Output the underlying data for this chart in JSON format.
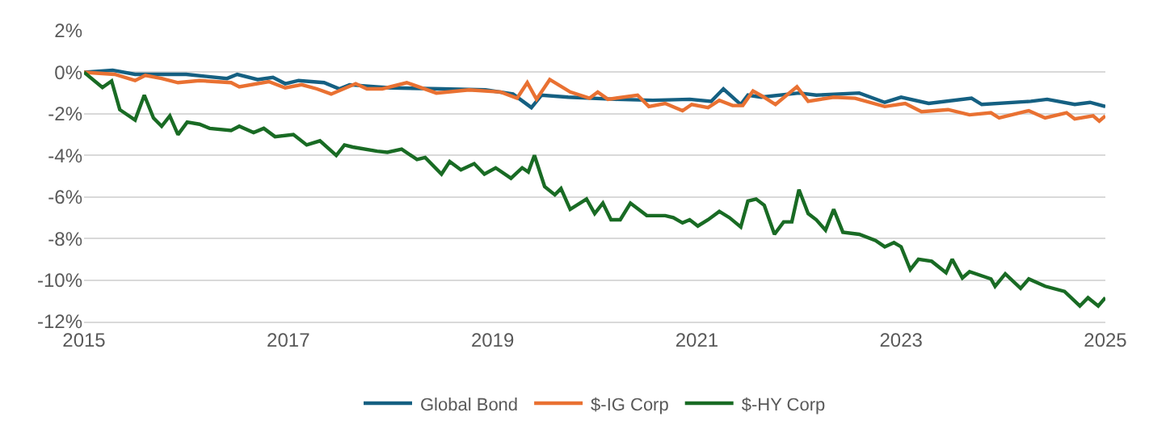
{
  "chart_data": {
    "type": "line",
    "xlim": [
      2015,
      2025
    ],
    "xticks": [
      2015,
      2017,
      2019,
      2021,
      2023,
      2025
    ],
    "ylim": [
      -12,
      2
    ],
    "yticks": [
      {
        "value": 2,
        "label": "2%"
      },
      {
        "value": 0,
        "label": "0%"
      },
      {
        "value": -2,
        "label": "-2%"
      },
      {
        "value": -4,
        "label": "-4%"
      },
      {
        "value": -6,
        "label": "-6%"
      },
      {
        "value": -8,
        "label": "-8%"
      },
      {
        "value": -10,
        "label": "-10%"
      },
      {
        "value": -12,
        "label": "-12%"
      }
    ],
    "grid": "y",
    "legend": "bottom",
    "marker": "none",
    "line_style": "solid",
    "series": [
      {
        "name": "Global Bond",
        "color": "#156082",
        "x": [
          2015,
          2015.28,
          2015.5,
          2016.0,
          2016.2,
          2016.4,
          2016.5,
          2016.7,
          2016.85,
          2016.97,
          2017.1,
          2017.35,
          2017.5,
          2017.6,
          2017.86,
          2018.0,
          2018.5,
          2018.93,
          2019.2,
          2019.38,
          2019.48,
          2019.74,
          2020.2,
          2020.57,
          2020.93,
          2021.14,
          2021.26,
          2021.43,
          2021.5,
          2021.63,
          2022.0,
          2022.17,
          2022.59,
          2022.84,
          2023.0,
          2023.27,
          2023.69,
          2023.79,
          2024.27,
          2024.43,
          2024.7,
          2024.85,
          2025
        ],
        "values": [
          0,
          0.1,
          -0.1,
          -0.1,
          -0.2,
          -0.3,
          -0.1,
          -0.35,
          -0.25,
          -0.55,
          -0.4,
          -0.5,
          -0.8,
          -0.6,
          -0.7,
          -0.75,
          -0.8,
          -0.85,
          -1.05,
          -1.7,
          -1.1,
          -1.2,
          -1.3,
          -1.35,
          -1.3,
          -1.4,
          -0.8,
          -1.55,
          -1.1,
          -1.2,
          -1.0,
          -1.1,
          -1.0,
          -1.45,
          -1.2,
          -1.5,
          -1.25,
          -1.55,
          -1.4,
          -1.3,
          -1.55,
          -1.45,
          -1.65
        ]
      },
      {
        "name": "$-IG Corp",
        "color": "#e97132",
        "x": [
          2015,
          2015.3,
          2015.5,
          2015.6,
          2015.76,
          2015.92,
          2016.13,
          2016.44,
          2016.52,
          2016.81,
          2016.97,
          2017.13,
          2017.28,
          2017.42,
          2017.66,
          2017.77,
          2017.92,
          2018.16,
          2018.45,
          2018.77,
          2019.08,
          2019.24,
          2019.34,
          2019.43,
          2019.56,
          2019.76,
          2019.95,
          2020.03,
          2020.13,
          2020.42,
          2020.53,
          2020.69,
          2020.86,
          2020.95,
          2021.11,
          2021.22,
          2021.35,
          2021.45,
          2021.55,
          2021.64,
          2021.77,
          2021.98,
          2022.09,
          2022.34,
          2022.55,
          2022.84,
          2023.04,
          2023.2,
          2023.46,
          2023.67,
          2023.88,
          2023.96,
          2024.25,
          2024.41,
          2024.62,
          2024.7,
          2024.88,
          2024.94,
          2025
        ],
        "values": [
          0,
          -0.1,
          -0.4,
          -0.15,
          -0.3,
          -0.5,
          -0.4,
          -0.5,
          -0.7,
          -0.45,
          -0.75,
          -0.6,
          -0.8,
          -1.05,
          -0.55,
          -0.8,
          -0.8,
          -0.5,
          -1.0,
          -0.85,
          -0.95,
          -1.25,
          -0.5,
          -1.3,
          -0.35,
          -0.95,
          -1.25,
          -0.95,
          -1.3,
          -1.1,
          -1.65,
          -1.5,
          -1.85,
          -1.55,
          -1.7,
          -1.35,
          -1.6,
          -1.6,
          -0.9,
          -1.15,
          -1.55,
          -0.7,
          -1.4,
          -1.2,
          -1.25,
          -1.65,
          -1.5,
          -1.9,
          -1.8,
          -2.05,
          -1.95,
          -2.2,
          -1.85,
          -2.2,
          -1.95,
          -2.25,
          -2.1,
          -2.35,
          -2.1
        ]
      },
      {
        "name": "$-HY Corp",
        "color": "#196b24",
        "x": [
          2015,
          2015.18,
          2015.27,
          2015.35,
          2015.5,
          2015.59,
          2015.68,
          2015.76,
          2015.84,
          2015.92,
          2016.01,
          2016.13,
          2016.23,
          2016.44,
          2016.52,
          2016.66,
          2016.76,
          2016.87,
          2017.05,
          2017.18,
          2017.31,
          2017.47,
          2017.55,
          2017.63,
          2017.87,
          2017.97,
          2018.11,
          2018.26,
          2018.34,
          2018.5,
          2018.58,
          2018.69,
          2018.82,
          2018.92,
          2019.03,
          2019.18,
          2019.29,
          2019.35,
          2019.41,
          2019.51,
          2019.61,
          2019.67,
          2019.76,
          2019.92,
          2020.0,
          2020.08,
          2020.16,
          2020.25,
          2020.35,
          2020.51,
          2020.69,
          2020.77,
          2020.86,
          2020.93,
          2021.01,
          2021.11,
          2021.22,
          2021.32,
          2021.43,
          2021.5,
          2021.58,
          2021.66,
          2021.76,
          2021.85,
          2021.93,
          2022.0,
          2022.09,
          2022.17,
          2022.26,
          2022.34,
          2022.43,
          2022.59,
          2022.75,
          2022.84,
          2022.93,
          2023.0,
          2023.09,
          2023.17,
          2023.3,
          2023.44,
          2023.5,
          2023.6,
          2023.67,
          2023.88,
          2023.92,
          2024.02,
          2024.17,
          2024.25,
          2024.41,
          2024.6,
          2024.75,
          2024.83,
          2024.93,
          2025
        ],
        "values": [
          0,
          -0.73,
          -0.42,
          -1.8,
          -2.3,
          -1.1,
          -2.2,
          -2.6,
          -2.1,
          -3.0,
          -2.4,
          -2.5,
          -2.7,
          -2.8,
          -2.6,
          -2.9,
          -2.7,
          -3.1,
          -3.0,
          -3.5,
          -3.3,
          -4.0,
          -3.5,
          -3.6,
          -3.8,
          -3.85,
          -3.7,
          -4.2,
          -4.1,
          -4.9,
          -4.3,
          -4.7,
          -4.4,
          -4.9,
          -4.6,
          -5.1,
          -4.6,
          -4.8,
          -4.0,
          -5.5,
          -5.9,
          -5.6,
          -6.6,
          -6.1,
          -6.8,
          -6.3,
          -7.1,
          -7.1,
          -6.3,
          -6.9,
          -6.9,
          -7.0,
          -7.25,
          -7.1,
          -7.4,
          -7.1,
          -6.7,
          -7.0,
          -7.45,
          -6.2,
          -6.1,
          -6.4,
          -7.8,
          -7.2,
          -7.2,
          -5.65,
          -6.8,
          -7.1,
          -7.6,
          -6.6,
          -7.7,
          -7.8,
          -8.1,
          -8.4,
          -8.2,
          -8.4,
          -9.5,
          -9.0,
          -9.1,
          -9.65,
          -9.0,
          -9.9,
          -9.6,
          -9.95,
          -10.3,
          -9.7,
          -10.4,
          -9.95,
          -10.3,
          -10.55,
          -11.25,
          -10.85,
          -11.25,
          -10.85
        ]
      }
    ]
  }
}
